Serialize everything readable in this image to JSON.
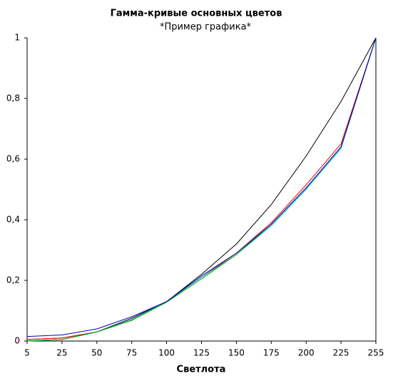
{
  "chart_data": {
    "type": "line",
    "title": "Гамма-кривые  основных цветов",
    "subtitle": "*Пример графика*",
    "x_label": "Светлота",
    "categories": [
      "5",
      "25",
      "50",
      "75",
      "100",
      "125",
      "150",
      "175",
      "200",
      "225",
      "255"
    ],
    "series": [
      {
        "color": "#000000",
        "values": [
          0.005,
          0.01,
          0.03,
          0.075,
          0.13,
          0.22,
          0.32,
          0.45,
          0.61,
          0.79,
          1
        ]
      },
      {
        "color": "#ff0000",
        "values": [
          0.005,
          0.01,
          0.03,
          0.07,
          0.13,
          0.21,
          0.29,
          0.39,
          0.515,
          0.65,
          1
        ]
      },
      {
        "color": "#00c0c0",
        "values": [
          0,
          0.005,
          0.03,
          0.07,
          0.13,
          0.21,
          0.285,
          0.38,
          0.5,
          0.635,
          1
        ]
      },
      {
        "color": "#00a000",
        "values": [
          0,
          0.005,
          0.03,
          0.068,
          0.128,
          0.205,
          0.285,
          0.385,
          0.505,
          0.64,
          1
        ]
      },
      {
        "color": "#0000c0",
        "values": [
          0.015,
          0.02,
          0.04,
          0.08,
          0.13,
          0.215,
          0.29,
          0.385,
          0.505,
          0.64,
          1
        ]
      }
    ],
    "ylim": [
      0,
      1
    ],
    "yticks": [
      0,
      {
        "value": 0.2,
        "label": "0,2"
      },
      {
        "value": 0.4,
        "label": "0,4"
      },
      {
        "value": 0.6,
        "label": "0,6"
      },
      {
        "value": 0.8,
        "label": "0,8"
      },
      1
    ],
    "grid": false
  }
}
